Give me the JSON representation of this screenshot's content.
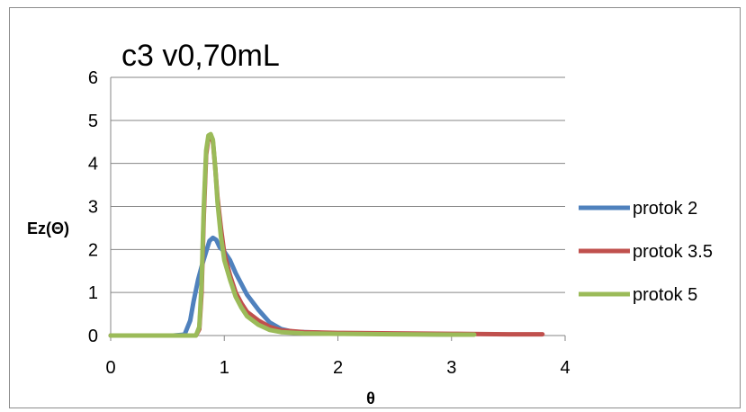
{
  "chart_data": {
    "type": "line",
    "title": "c3 v0,70mL",
    "xlabel": "θ",
    "ylabel": "Ez(Θ)",
    "xlim": [
      0,
      4
    ],
    "ylim": [
      0,
      6
    ],
    "xticks": [
      "0",
      "1",
      "2",
      "3",
      "4"
    ],
    "yticks": [
      "0",
      "1",
      "2",
      "3",
      "4",
      "5",
      "6"
    ],
    "grid": "horizontal",
    "legend_position": "right",
    "series": [
      {
        "name": "protok 2",
        "color": "#4F81BD",
        "points": [
          [
            0,
            0
          ],
          [
            0.3,
            0
          ],
          [
            0.55,
            0
          ],
          [
            0.65,
            0.02
          ],
          [
            0.7,
            0.35
          ],
          [
            0.73,
            0.8
          ],
          [
            0.77,
            1.3
          ],
          [
            0.8,
            1.6
          ],
          [
            0.84,
            1.95
          ],
          [
            0.87,
            2.2
          ],
          [
            0.9,
            2.27
          ],
          [
            0.93,
            2.22
          ],
          [
            0.96,
            2.05
          ],
          [
            1.0,
            1.95
          ],
          [
            1.05,
            1.75
          ],
          [
            1.1,
            1.45
          ],
          [
            1.15,
            1.2
          ],
          [
            1.2,
            0.95
          ],
          [
            1.3,
            0.6
          ],
          [
            1.4,
            0.3
          ],
          [
            1.5,
            0.15
          ],
          [
            1.6,
            0.09
          ],
          [
            1.8,
            0.07
          ],
          [
            2.0,
            0.05
          ],
          [
            2.4,
            0.04
          ],
          [
            2.8,
            0.03
          ],
          [
            3.0,
            0.02
          ]
        ]
      },
      {
        "name": "protok 3.5",
        "color": "#C0504D",
        "points": [
          [
            0,
            0
          ],
          [
            0.5,
            0
          ],
          [
            0.75,
            0
          ],
          [
            0.78,
            0.15
          ],
          [
            0.8,
            1.0
          ],
          [
            0.82,
            2.8
          ],
          [
            0.84,
            4.2
          ],
          [
            0.86,
            4.6
          ],
          [
            0.88,
            4.65
          ],
          [
            0.9,
            4.5
          ],
          [
            0.92,
            3.9
          ],
          [
            0.94,
            3.2
          ],
          [
            0.97,
            2.5
          ],
          [
            1.0,
            1.9
          ],
          [
            1.05,
            1.4
          ],
          [
            1.1,
            1.0
          ],
          [
            1.15,
            0.75
          ],
          [
            1.2,
            0.55
          ],
          [
            1.3,
            0.35
          ],
          [
            1.4,
            0.2
          ],
          [
            1.5,
            0.12
          ],
          [
            1.7,
            0.08
          ],
          [
            2.0,
            0.06
          ],
          [
            2.5,
            0.05
          ],
          [
            3.0,
            0.04
          ],
          [
            3.5,
            0.03
          ],
          [
            3.8,
            0.03
          ]
        ]
      },
      {
        "name": "protok 5",
        "color": "#9BBB59",
        "points": [
          [
            0,
            0
          ],
          [
            0.5,
            0
          ],
          [
            0.75,
            0
          ],
          [
            0.78,
            0.2
          ],
          [
            0.8,
            1.2
          ],
          [
            0.82,
            3.0
          ],
          [
            0.84,
            4.3
          ],
          [
            0.86,
            4.65
          ],
          [
            0.88,
            4.68
          ],
          [
            0.9,
            4.55
          ],
          [
            0.92,
            3.9
          ],
          [
            0.94,
            3.1
          ],
          [
            0.97,
            2.3
          ],
          [
            1.0,
            1.75
          ],
          [
            1.05,
            1.3
          ],
          [
            1.1,
            0.9
          ],
          [
            1.15,
            0.65
          ],
          [
            1.2,
            0.45
          ],
          [
            1.3,
            0.25
          ],
          [
            1.4,
            0.13
          ],
          [
            1.5,
            0.08
          ],
          [
            1.7,
            0.05
          ],
          [
            2.0,
            0.04
          ],
          [
            2.5,
            0.03
          ],
          [
            3.0,
            0.02
          ],
          [
            3.2,
            0.02
          ]
        ]
      }
    ]
  }
}
